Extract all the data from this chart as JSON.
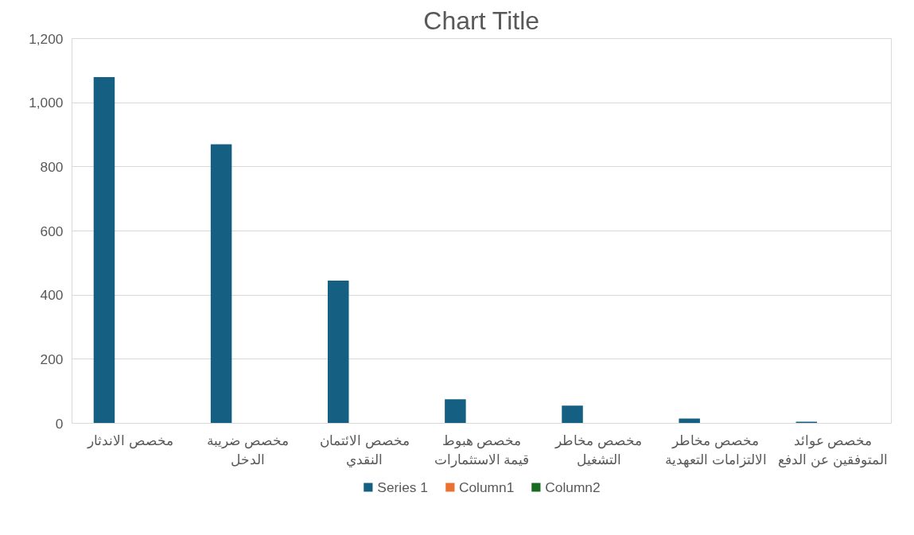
{
  "chart_data": {
    "type": "bar",
    "title": "Chart Title",
    "categories": [
      "مخصص الاندثار",
      "مخصص ضريبة الدخل",
      "مخصص الائتمان النقدي",
      "مخصص هبوط قيمة الاستثمارات",
      "مخصص مخاطر التشغيل",
      "مخصص مخاطر الالتزامات التعهدية",
      "مخصص عوائد المتوفقين عن الدفع"
    ],
    "series": [
      {
        "name": "Series 1",
        "color": "#156082",
        "values": [
          1080,
          870,
          445,
          75,
          55,
          15,
          5
        ]
      },
      {
        "name": "Column1",
        "color": "#e97132",
        "values": [
          null,
          null,
          null,
          null,
          null,
          null,
          null
        ]
      },
      {
        "name": "Column2",
        "color": "#196b24",
        "values": [
          null,
          null,
          null,
          null,
          null,
          null,
          null
        ]
      }
    ],
    "ylim": [
      0,
      1200
    ],
    "yticks": [
      {
        "value": 0,
        "label": "0"
      },
      {
        "value": 200,
        "label": "200"
      },
      {
        "value": 400,
        "label": "400"
      },
      {
        "value": 600,
        "label": "600"
      },
      {
        "value": 800,
        "label": "800"
      },
      {
        "value": 1000,
        "label": "1,000"
      },
      {
        "value": 1200,
        "label": "1,200"
      }
    ],
    "grid": "y",
    "legend": "bottom"
  }
}
